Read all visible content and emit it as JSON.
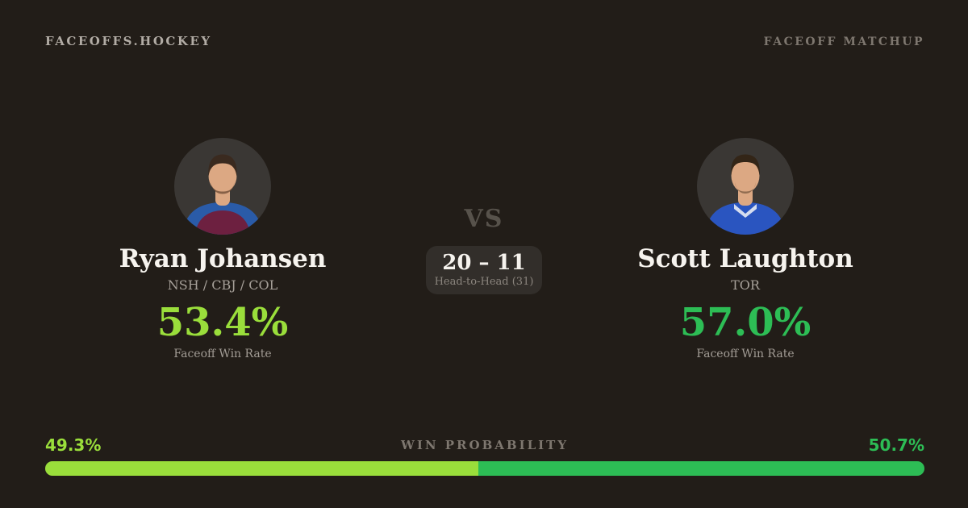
{
  "header": {
    "brand": "FACEOFFS.HOCKEY",
    "label": "FACEOFF MATCHUP"
  },
  "players": {
    "left": {
      "name": "Ryan Johansen",
      "teams": "NSH / CBJ / COL",
      "win_rate": "53.4%",
      "win_rate_label": "Faceoff Win Rate",
      "accent_color": "#9ade3b",
      "avatar": {
        "icon": "player-headshot",
        "jersey_color": "#6d2040",
        "yoke_color": "#2a5ba8",
        "skin_color": "#dca883",
        "hair_color": "#3a2a1f"
      }
    },
    "right": {
      "name": "Scott Laughton",
      "teams": "TOR",
      "win_rate": "57.0%",
      "win_rate_label": "Faceoff Win Rate",
      "accent_color": "#2dbd55",
      "avatar": {
        "icon": "player-headshot",
        "jersey_color": "#2a55c0",
        "yoke_color": "#3b66cf",
        "skin_color": "#dca883",
        "hair_color": "#332517"
      }
    }
  },
  "matchup": {
    "vs": "VS",
    "head_to_head_score": "20 – 11",
    "head_to_head_label": "Head-to-Head (31)"
  },
  "win_probability": {
    "label": "WIN PROBABILITY",
    "left": {
      "text": "49.3%",
      "value": 49.3,
      "color": "#9ade3b"
    },
    "right": {
      "text": "50.7%",
      "value": 50.7,
      "color": "#2dbd55"
    }
  },
  "colors": {
    "background": "#221d18",
    "panel": "#322e2a",
    "avatar_background": "#3a3734",
    "text_primary": "#f6f3ee",
    "text_muted": "#a6a099",
    "text_dim": "#7e776f"
  }
}
